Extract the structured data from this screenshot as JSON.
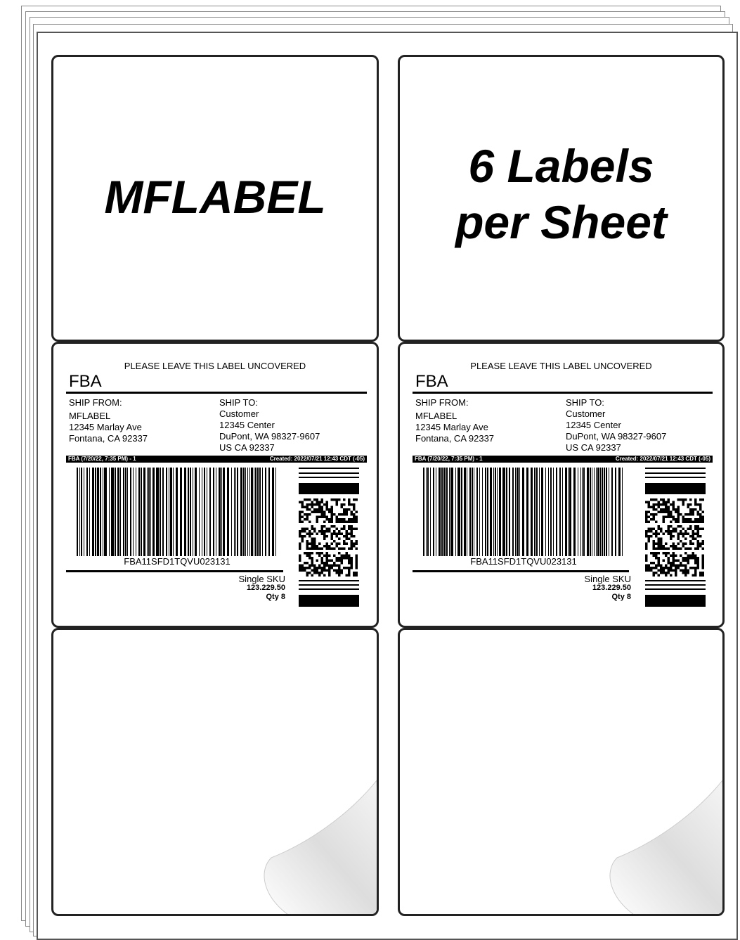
{
  "top_left_label": {
    "text": "MFLABEL"
  },
  "top_right_label": {
    "line1": "6 Labels",
    "line2": "per Sheet"
  },
  "shipping_label": {
    "header": "PLEASE LEAVE THIS LABEL UNCOVERED",
    "title": "FBA",
    "ship_from": {
      "heading": "SHIP FROM:",
      "lines": [
        "MFLABEL",
        "12345 Marlay Ave",
        "Fontana, CA 92337"
      ]
    },
    "ship_to": {
      "heading": "SHIP TO:",
      "lines": [
        "Customer",
        "12345 Center",
        "DuPont, WA 98327-9607",
        "US CA 92337"
      ]
    },
    "strip_left": "FBA (7/20/22, 7:35 PM) - 1",
    "strip_right": "Created: 2022/07/21 12:43 CDT (-05)",
    "barcode_text": "FBA11SFD1TQVU023131",
    "sku_label": "Single SKU",
    "sku_number": "123.229.50",
    "qty": "Qty 8"
  }
}
